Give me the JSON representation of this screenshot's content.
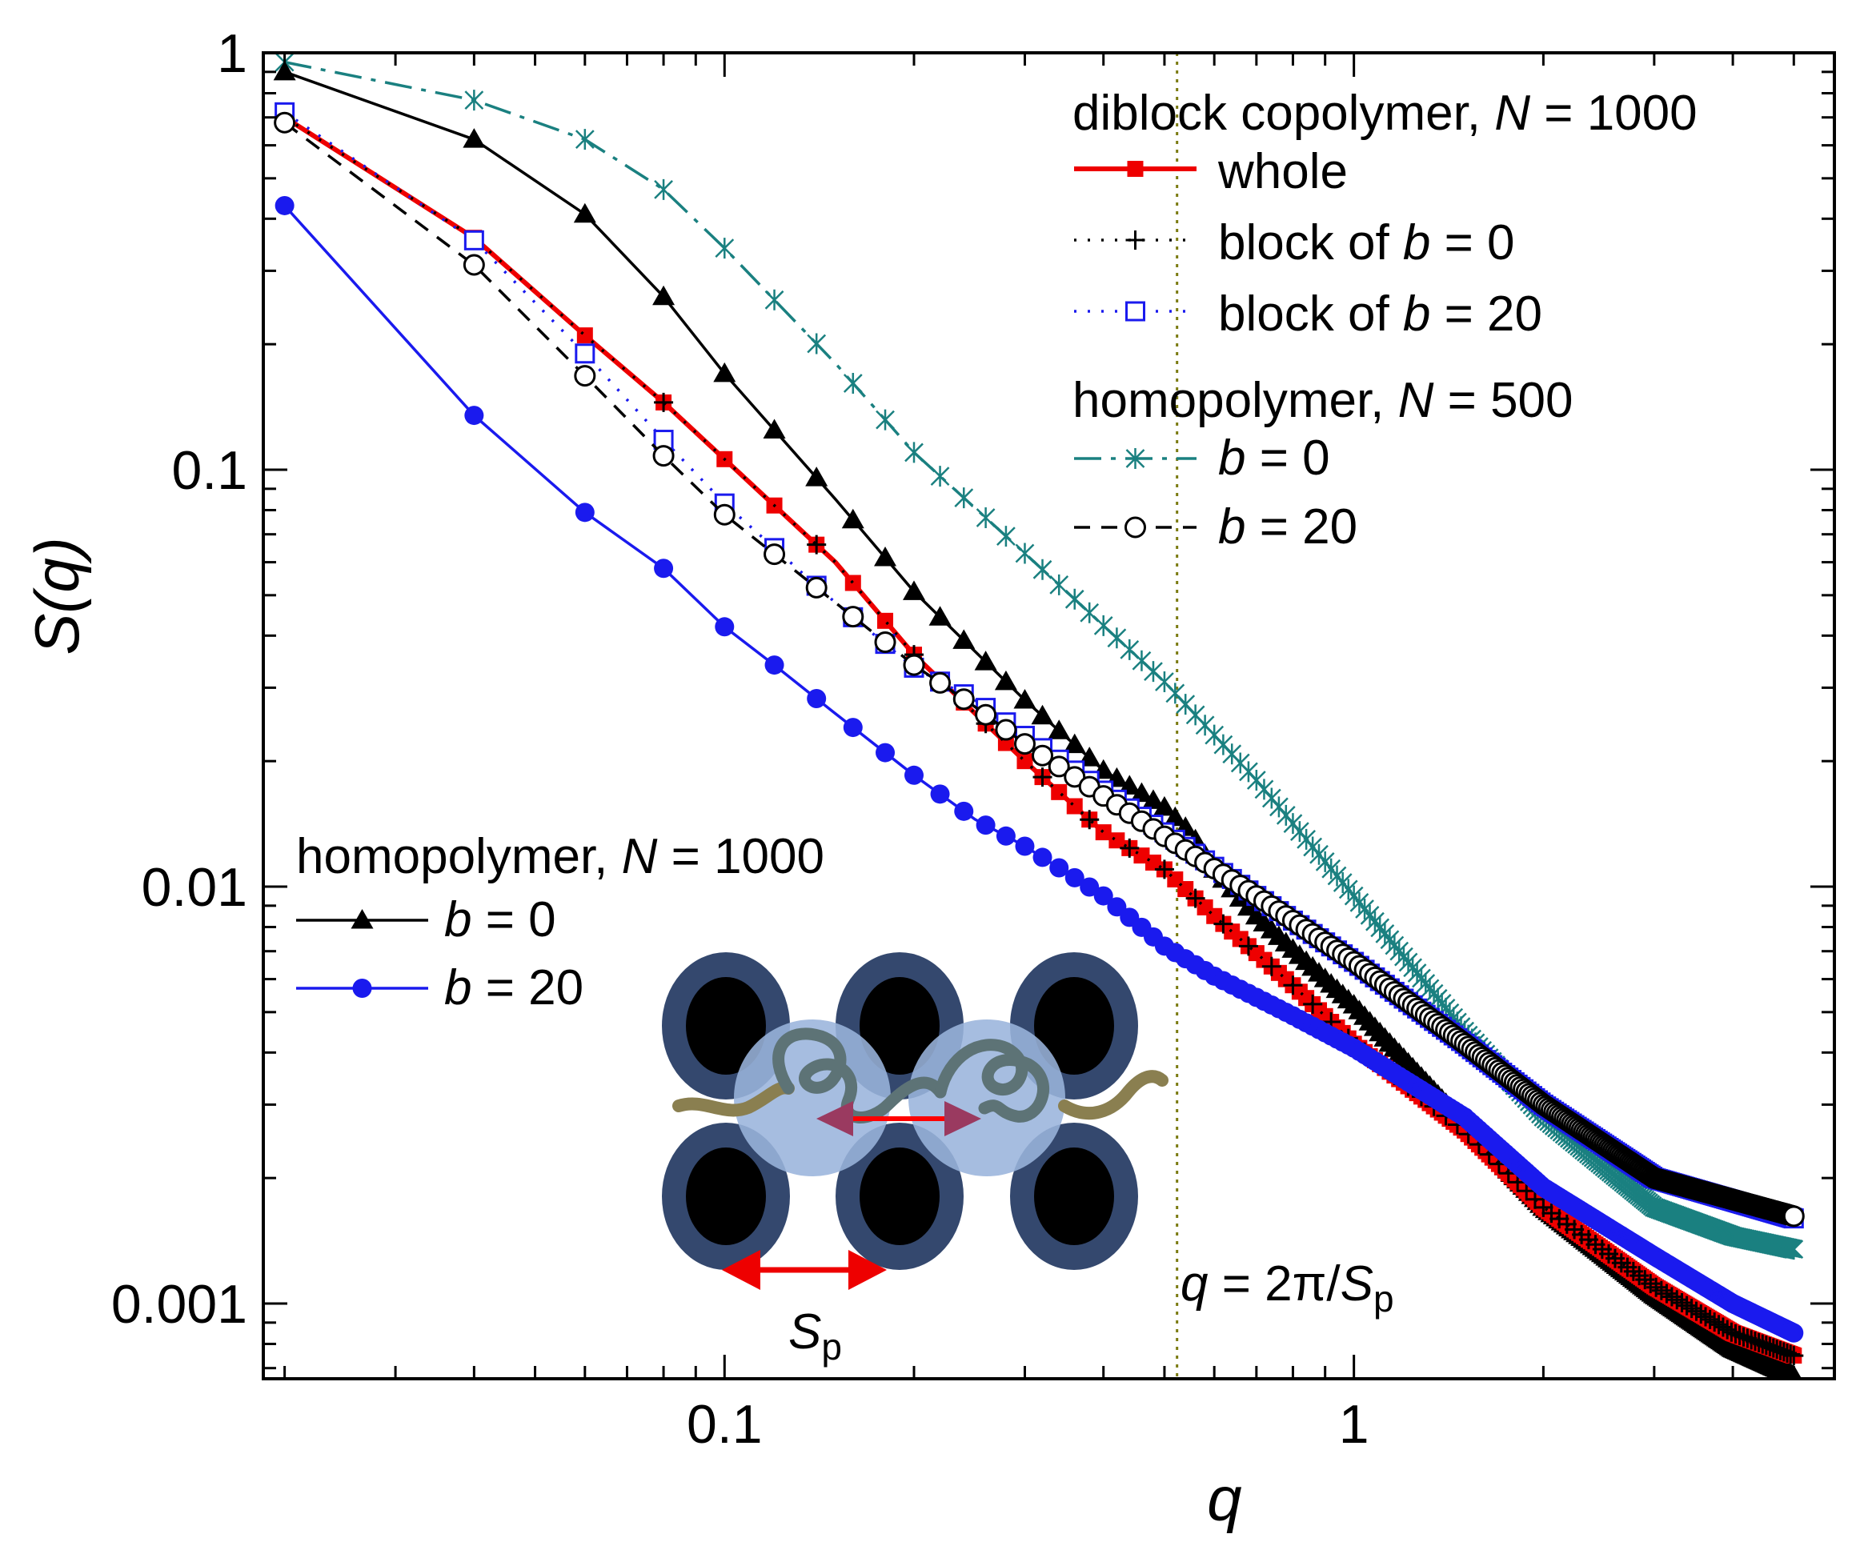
{
  "chart_data": {
    "type": "line",
    "xscale": "log",
    "yscale": "log",
    "xlim": [
      0.0185,
      5.8
    ],
    "ylim": [
      0.00066,
      1.0
    ],
    "xlabel": "q",
    "ylabel": "S(q)",
    "x_ticks": [
      {
        "value": 0.1,
        "label": "0.1"
      },
      {
        "value": 1,
        "label": "1"
      }
    ],
    "y_ticks": [
      {
        "value": 1,
        "label": "1"
      },
      {
        "value": 0.1,
        "label": "0.1"
      },
      {
        "value": 0.01,
        "label": "0.01"
      },
      {
        "value": 0.001,
        "label": "0.001"
      }
    ],
    "vline": {
      "value": 0.5236,
      "label_parts": [
        "q",
        " = 2π/",
        "S",
        "p"
      ]
    },
    "legends": {
      "top_right": {
        "header1_parts": [
          "diblock copolymer, ",
          "N",
          " = 1000"
        ],
        "entries1": [
          {
            "series": "diblock_whole",
            "parts": [
              "whole"
            ]
          },
          {
            "series": "diblock_block_b0",
            "parts": [
              "block of ",
              "b",
              " = 0"
            ]
          },
          {
            "series": "diblock_block_b20",
            "parts": [
              "block of ",
              "b",
              " = 20"
            ]
          }
        ],
        "header2_parts": [
          "homopolymer, ",
          "N",
          " = 500"
        ],
        "entries2": [
          {
            "series": "homo500_b0",
            "parts": [
              "b",
              " = 0"
            ]
          },
          {
            "series": "homo500_b20",
            "parts": [
              "b",
              " = 20"
            ]
          }
        ]
      },
      "bottom_left": {
        "header_parts": [
          "homopolymer, ",
          "N",
          " = 1000"
        ],
        "entries": [
          {
            "series": "homo1000_b0",
            "parts": [
              "b",
              " = 0"
            ]
          },
          {
            "series": "homo1000_b20",
            "parts": [
              "b",
              " = 20"
            ]
          }
        ]
      }
    },
    "inset": {
      "label_parts": [
        "S",
        "p"
      ]
    },
    "series": [
      {
        "id": "homo500_b0",
        "name": "homopolymer, N = 500, b = 0",
        "color": "#1a8080",
        "dash": "34 12 6 12",
        "marker": "x",
        "marker_step": 1,
        "points": [
          [
            0.02,
            0.95
          ],
          [
            0.03,
            0.84
          ],
          [
            0.04,
            0.77
          ],
          [
            0.06,
            0.62
          ],
          [
            0.08,
            0.47
          ],
          [
            0.1,
            0.34
          ],
          [
            0.15,
            0.18
          ],
          [
            0.2,
            0.11
          ],
          [
            0.3,
            0.063
          ],
          [
            0.5,
            0.031
          ],
          [
            0.7,
            0.018
          ],
          [
            1.0,
            0.0095
          ],
          [
            1.5,
            0.0045
          ],
          [
            2.0,
            0.0028
          ],
          [
            3.0,
            0.0017
          ],
          [
            4.0,
            0.00145
          ],
          [
            5.0,
            0.00135
          ]
        ]
      },
      {
        "id": "homo1000_b0",
        "name": "homopolymer, N = 1000, b = 0",
        "color": "#000000",
        "dash": "",
        "marker": "triangle",
        "marker_step": 1,
        "points": [
          [
            0.02,
            0.9
          ],
          [
            0.04,
            0.62
          ],
          [
            0.06,
            0.41
          ],
          [
            0.08,
            0.26
          ],
          [
            0.1,
            0.17
          ],
          [
            0.15,
            0.085
          ],
          [
            0.2,
            0.051
          ],
          [
            0.3,
            0.028
          ],
          [
            0.4,
            0.019
          ],
          [
            0.5,
            0.0155
          ],
          [
            0.55,
            0.0135
          ],
          [
            0.6,
            0.011
          ],
          [
            0.7,
            0.0085
          ],
          [
            1.0,
            0.0052
          ],
          [
            1.5,
            0.0027
          ],
          [
            2.0,
            0.0017
          ],
          [
            3.0,
            0.00105
          ],
          [
            4.0,
            0.00078
          ],
          [
            5.0,
            0.00067
          ]
        ]
      },
      {
        "id": "diblock_whole",
        "name": "diblock copolymer, N = 1000, whole",
        "color": "#ee0000",
        "dash": "",
        "marker": "square-filled",
        "marker_step": 1,
        "points": [
          [
            0.02,
            0.7
          ],
          [
            0.04,
            0.36
          ],
          [
            0.06,
            0.21
          ],
          [
            0.08,
            0.145
          ],
          [
            0.1,
            0.106
          ],
          [
            0.15,
            0.06
          ],
          [
            0.2,
            0.036
          ],
          [
            0.3,
            0.02
          ],
          [
            0.4,
            0.0135
          ],
          [
            0.5,
            0.011
          ],
          [
            0.6,
            0.0085
          ],
          [
            0.8,
            0.0058
          ],
          [
            1.0,
            0.0042
          ],
          [
            1.5,
            0.0026
          ],
          [
            2.0,
            0.0017
          ],
          [
            3.0,
            0.0011
          ],
          [
            4.0,
            0.00085
          ],
          [
            5.0,
            0.00075
          ]
        ]
      },
      {
        "id": "diblock_block_b0",
        "name": "diblock copolymer, block of b = 0",
        "color": "#000000",
        "dash": "3 14",
        "marker": "plus",
        "marker_step": 3,
        "points": [
          [
            0.02,
            0.7
          ],
          [
            0.04,
            0.36
          ],
          [
            0.06,
            0.21
          ],
          [
            0.08,
            0.145
          ],
          [
            0.1,
            0.106
          ],
          [
            0.15,
            0.06
          ],
          [
            0.2,
            0.036
          ],
          [
            0.3,
            0.02
          ],
          [
            0.4,
            0.0135
          ],
          [
            0.5,
            0.011
          ],
          [
            0.6,
            0.0085
          ],
          [
            0.8,
            0.0058
          ],
          [
            1.0,
            0.0042
          ],
          [
            1.5,
            0.0026
          ],
          [
            2.0,
            0.0017
          ],
          [
            3.0,
            0.0011
          ],
          [
            4.0,
            0.00085
          ],
          [
            5.0,
            0.00075
          ]
        ]
      },
      {
        "id": "diblock_block_b20",
        "name": "diblock copolymer, block of b = 20",
        "color": "#1a1aee",
        "dash": "3 14",
        "marker": "square-open",
        "marker_step": 1,
        "points": [
          [
            0.02,
            0.72
          ],
          [
            0.04,
            0.355
          ],
          [
            0.06,
            0.19
          ],
          [
            0.08,
            0.118
          ],
          [
            0.1,
            0.083
          ],
          [
            0.15,
            0.048
          ],
          [
            0.2,
            0.0335
          ],
          [
            0.25,
            0.028
          ],
          [
            0.3,
            0.023
          ],
          [
            0.4,
            0.017
          ],
          [
            0.5,
            0.0135
          ],
          [
            0.7,
            0.0095
          ],
          [
            1.0,
            0.0066
          ],
          [
            1.5,
            0.0042
          ],
          [
            2.0,
            0.003
          ],
          [
            3.0,
            0.002
          ],
          [
            5.0,
            0.0016
          ]
        ]
      },
      {
        "id": "homo500_b20",
        "name": "homopolymer, N = 500, b = 20",
        "color": "#000000",
        "dash": "20 14",
        "marker": "circle-open",
        "marker_step": 1,
        "points": [
          [
            0.02,
            0.68
          ],
          [
            0.04,
            0.31
          ],
          [
            0.06,
            0.168
          ],
          [
            0.08,
            0.108
          ],
          [
            0.1,
            0.078
          ],
          [
            0.15,
            0.048
          ],
          [
            0.2,
            0.034
          ],
          [
            0.25,
            0.027
          ],
          [
            0.3,
            0.022
          ],
          [
            0.4,
            0.0165
          ],
          [
            0.5,
            0.0132
          ],
          [
            0.7,
            0.0095
          ],
          [
            1.0,
            0.0066
          ],
          [
            1.5,
            0.0042
          ],
          [
            2.0,
            0.003
          ],
          [
            3.0,
            0.002
          ],
          [
            5.0,
            0.00162
          ]
        ]
      },
      {
        "id": "homo1000_b20",
        "name": "homopolymer, N = 1000, b = 20",
        "color": "#1a1aee",
        "dash": "",
        "marker": "circle-filled",
        "marker_step": 1,
        "points": [
          [
            0.02,
            0.43
          ],
          [
            0.04,
            0.135
          ],
          [
            0.06,
            0.079
          ],
          [
            0.08,
            0.058
          ],
          [
            0.1,
            0.042
          ],
          [
            0.12,
            0.034
          ],
          [
            0.15,
            0.026
          ],
          [
            0.2,
            0.0185
          ],
          [
            0.25,
            0.0145
          ],
          [
            0.3,
            0.0125
          ],
          [
            0.4,
            0.0095
          ],
          [
            0.5,
            0.0072
          ],
          [
            0.6,
            0.0061
          ],
          [
            0.8,
            0.0049
          ],
          [
            1.0,
            0.0041
          ],
          [
            1.5,
            0.0028
          ],
          [
            2.0,
            0.0019
          ],
          [
            3.0,
            0.0013
          ],
          [
            4.0,
            0.001
          ],
          [
            5.0,
            0.00085
          ]
        ]
      }
    ]
  }
}
